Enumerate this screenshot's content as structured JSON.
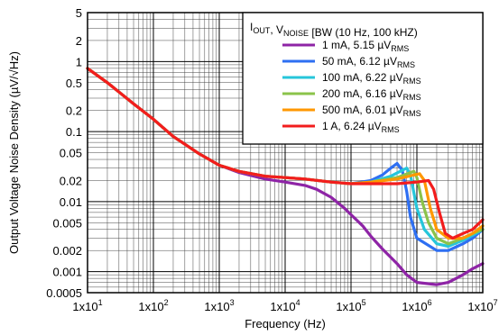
{
  "chart_data": {
    "type": "line",
    "xlabel": "Frequency (Hz)",
    "ylabel": "Output Voltage Noise Density (µV/√Hz)",
    "x_scale": "log",
    "y_scale": "log",
    "xlim": [
      10,
      10000000
    ],
    "ylim": [
      0.0005,
      5
    ],
    "grid": true,
    "legend_position": "top-right",
    "x_ticks": [
      {
        "value": 10,
        "mantissa": "1x10",
        "exponent": "1"
      },
      {
        "value": 100,
        "mantissa": "1x10",
        "exponent": "2"
      },
      {
        "value": 1000,
        "mantissa": "1x10",
        "exponent": "3"
      },
      {
        "value": 10000,
        "mantissa": "1x10",
        "exponent": "4"
      },
      {
        "value": 100000,
        "mantissa": "1x10",
        "exponent": "5"
      },
      {
        "value": 1000000,
        "mantissa": "1x10",
        "exponent": "6"
      },
      {
        "value": 10000000,
        "mantissa": "1x10",
        "exponent": "7"
      }
    ],
    "y_ticks": [
      {
        "value": 5,
        "label": "5"
      },
      {
        "value": 2,
        "label": "2"
      },
      {
        "value": 1,
        "label": "1"
      },
      {
        "value": 0.5,
        "label": "0.5"
      },
      {
        "value": 0.2,
        "label": "0.2"
      },
      {
        "value": 0.1,
        "label": "0.1"
      },
      {
        "value": 0.05,
        "label": "0.05"
      },
      {
        "value": 0.02,
        "label": "0.02"
      },
      {
        "value": 0.01,
        "label": "0.01"
      },
      {
        "value": 0.005,
        "label": "0.005"
      },
      {
        "value": 0.002,
        "label": "0.002"
      },
      {
        "value": 0.001,
        "label": "0.001"
      },
      {
        "value": 0.0005,
        "label": "0.0005"
      }
    ],
    "legend_title": {
      "parts": [
        {
          "text": "I",
          "sub": "OUT"
        },
        {
          "text": ", V",
          "sub": "NOISE"
        },
        {
          "text": " [BW (10 Hz, 100 kHZ)",
          "sub": ""
        }
      ]
    },
    "series": [
      {
        "label_main": "1 mA, 5.15 µV",
        "label_sub": "RMS",
        "color": "#8e24a6",
        "points": [
          [
            10,
            0.8
          ],
          [
            20,
            0.5
          ],
          [
            50,
            0.25
          ],
          [
            100,
            0.15
          ],
          [
            200,
            0.085
          ],
          [
            500,
            0.048
          ],
          [
            1000,
            0.033
          ],
          [
            2000,
            0.026
          ],
          [
            5000,
            0.021
          ],
          [
            10000,
            0.019
          ],
          [
            20000,
            0.017
          ],
          [
            30000,
            0.015
          ],
          [
            50000,
            0.0115
          ],
          [
            80000,
            0.008
          ],
          [
            100000,
            0.0065
          ],
          [
            150000,
            0.0045
          ],
          [
            200000,
            0.0032
          ],
          [
            300000,
            0.0021
          ],
          [
            500000,
            0.0013
          ],
          [
            700000,
            0.0009
          ],
          [
            1000000,
            0.0007
          ],
          [
            2000000,
            0.00065
          ],
          [
            3000000,
            0.0007
          ],
          [
            5000000,
            0.0009
          ],
          [
            7000000,
            0.0011
          ],
          [
            10000000,
            0.0013
          ]
        ]
      },
      {
        "label_main": "50 mA, 6.12 µV",
        "label_sub": "RMS",
        "color": "#2e6ff2",
        "points": [
          [
            10,
            0.8
          ],
          [
            20,
            0.5
          ],
          [
            50,
            0.25
          ],
          [
            100,
            0.15
          ],
          [
            200,
            0.085
          ],
          [
            500,
            0.048
          ],
          [
            1000,
            0.033
          ],
          [
            2000,
            0.027
          ],
          [
            5000,
            0.023
          ],
          [
            10000,
            0.022
          ],
          [
            20000,
            0.021
          ],
          [
            50000,
            0.019
          ],
          [
            100000,
            0.018
          ],
          [
            200000,
            0.02
          ],
          [
            300000,
            0.024
          ],
          [
            400000,
            0.03
          ],
          [
            500000,
            0.035
          ],
          [
            600000,
            0.028
          ],
          [
            700000,
            0.014
          ],
          [
            800000,
            0.006
          ],
          [
            1000000,
            0.003
          ],
          [
            2000000,
            0.002
          ],
          [
            3000000,
            0.002
          ],
          [
            5000000,
            0.0025
          ],
          [
            7000000,
            0.003
          ],
          [
            10000000,
            0.004
          ]
        ]
      },
      {
        "label_main": "100 mA, 6.22 µV",
        "label_sub": "RMS",
        "color": "#26c6da",
        "points": [
          [
            10,
            0.8
          ],
          [
            20,
            0.5
          ],
          [
            50,
            0.25
          ],
          [
            100,
            0.15
          ],
          [
            200,
            0.085
          ],
          [
            500,
            0.048
          ],
          [
            1000,
            0.033
          ],
          [
            2000,
            0.027
          ],
          [
            5000,
            0.023
          ],
          [
            10000,
            0.022
          ],
          [
            20000,
            0.021
          ],
          [
            50000,
            0.019
          ],
          [
            100000,
            0.018
          ],
          [
            200000,
            0.019
          ],
          [
            400000,
            0.023
          ],
          [
            600000,
            0.028
          ],
          [
            700000,
            0.03
          ],
          [
            800000,
            0.024
          ],
          [
            1000000,
            0.008
          ],
          [
            1300000,
            0.004
          ],
          [
            2000000,
            0.0025
          ],
          [
            3000000,
            0.0023
          ],
          [
            5000000,
            0.0028
          ],
          [
            7000000,
            0.0033
          ],
          [
            10000000,
            0.004
          ]
        ]
      },
      {
        "label_main": "200 mA, 6.16 µV",
        "label_sub": "RMS",
        "color": "#8bc34a",
        "points": [
          [
            10,
            0.8
          ],
          [
            20,
            0.5
          ],
          [
            50,
            0.25
          ],
          [
            100,
            0.15
          ],
          [
            200,
            0.085
          ],
          [
            500,
            0.048
          ],
          [
            1000,
            0.033
          ],
          [
            2000,
            0.027
          ],
          [
            5000,
            0.023
          ],
          [
            10000,
            0.022
          ],
          [
            20000,
            0.021
          ],
          [
            50000,
            0.019
          ],
          [
            100000,
            0.018
          ],
          [
            200000,
            0.019
          ],
          [
            500000,
            0.022
          ],
          [
            800000,
            0.026
          ],
          [
            900000,
            0.027
          ],
          [
            1000000,
            0.022
          ],
          [
            1200000,
            0.01
          ],
          [
            1500000,
            0.005
          ],
          [
            2000000,
            0.003
          ],
          [
            3000000,
            0.0025
          ],
          [
            5000000,
            0.003
          ],
          [
            7000000,
            0.0035
          ],
          [
            10000000,
            0.004
          ]
        ]
      },
      {
        "label_main": "500 mA, 6.01 µV",
        "label_sub": "RMS",
        "color": "#ff9800",
        "points": [
          [
            10,
            0.8
          ],
          [
            20,
            0.5
          ],
          [
            50,
            0.25
          ],
          [
            100,
            0.15
          ],
          [
            200,
            0.085
          ],
          [
            500,
            0.048
          ],
          [
            1000,
            0.033
          ],
          [
            2000,
            0.027
          ],
          [
            5000,
            0.023
          ],
          [
            10000,
            0.022
          ],
          [
            20000,
            0.021
          ],
          [
            50000,
            0.019
          ],
          [
            100000,
            0.018
          ],
          [
            200000,
            0.019
          ],
          [
            500000,
            0.021
          ],
          [
            900000,
            0.024
          ],
          [
            1100000,
            0.025
          ],
          [
            1300000,
            0.02
          ],
          [
            1600000,
            0.008
          ],
          [
            2000000,
            0.004
          ],
          [
            3000000,
            0.003
          ],
          [
            5000000,
            0.003
          ],
          [
            7000000,
            0.0035
          ],
          [
            10000000,
            0.0045
          ]
        ]
      },
      {
        "label_main": "1 A, 6.24 µV",
        "label_sub": "RMS",
        "color": "#f21d1d",
        "points": [
          [
            10,
            0.8
          ],
          [
            20,
            0.5
          ],
          [
            50,
            0.25
          ],
          [
            100,
            0.15
          ],
          [
            200,
            0.085
          ],
          [
            500,
            0.048
          ],
          [
            1000,
            0.033
          ],
          [
            2000,
            0.027
          ],
          [
            5000,
            0.023
          ],
          [
            10000,
            0.022
          ],
          [
            20000,
            0.021
          ],
          [
            50000,
            0.019
          ],
          [
            100000,
            0.018
          ],
          [
            200000,
            0.018
          ],
          [
            500000,
            0.018
          ],
          [
            1000000,
            0.019
          ],
          [
            1500000,
            0.02
          ],
          [
            1800000,
            0.015
          ],
          [
            2200000,
            0.007
          ],
          [
            2700000,
            0.0035
          ],
          [
            3500000,
            0.003
          ],
          [
            5000000,
            0.0035
          ],
          [
            7000000,
            0.004
          ],
          [
            10000000,
            0.0055
          ]
        ]
      }
    ]
  }
}
